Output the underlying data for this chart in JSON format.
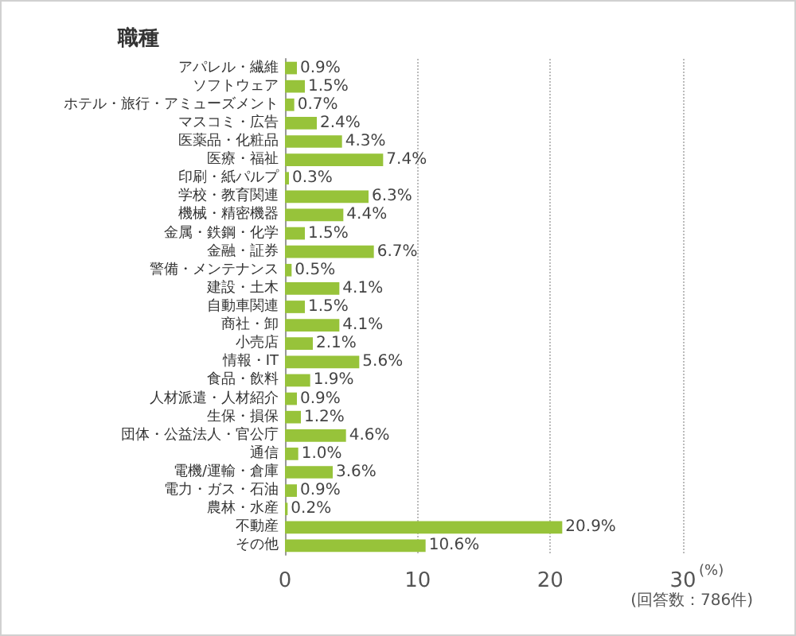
{
  "chart_data": {
    "type": "bar",
    "orientation": "horizontal",
    "title": "職種",
    "xlabel": "(%)",
    "categories": [
      "アパレル・繊維",
      "ソフトウェア",
      "ホテル・旅行・アミューズメント",
      "マスコミ・広告",
      "医薬品・化粧品",
      "医療・福祉",
      "印刷・紙パルプ",
      "学校・教育関連",
      "機械・精密機器",
      "金属・鉄鋼・化学",
      "金融・証券",
      "警備・メンテナンス",
      "建設・土木",
      "自動車関連",
      "商社・卸",
      "小売店",
      "情報・IT",
      "食品・飲料",
      "人材派遣・人材紹介",
      "生保・損保",
      "団体・公益法人・官公庁",
      "通信",
      "電機/運輸・倉庫",
      "電力・ガス・石油",
      "農林・水産",
      "不動産",
      "その他"
    ],
    "values": [
      0.9,
      1.5,
      0.7,
      2.4,
      4.3,
      7.4,
      0.3,
      6.3,
      4.4,
      1.5,
      6.7,
      0.5,
      4.1,
      1.5,
      4.1,
      2.1,
      5.6,
      1.9,
      0.9,
      1.2,
      4.6,
      1.0,
      3.6,
      0.9,
      0.2,
      20.9,
      10.6
    ],
    "value_labels": [
      "0.9%",
      "1.5%",
      "0.7%",
      "2.4%",
      "4.3%",
      "7.4%",
      "0.3%",
      "6.3%",
      "4.4%",
      "1.5%",
      "6.7%",
      "0.5%",
      "4.1%",
      "1.5%",
      "4.1%",
      "2.1%",
      "5.6%",
      "1.9%",
      "0.9%",
      "1.2%",
      "4.6%",
      "1.0%",
      "3.6%",
      "0.9%",
      "0.2%",
      "20.9%",
      "10.6%"
    ],
    "color": "#97c33a",
    "xlim": [
      0,
      30
    ],
    "xticks": [
      0,
      10,
      20,
      30
    ],
    "grid": "x",
    "annotations": [
      "(回答数：786件)"
    ]
  }
}
